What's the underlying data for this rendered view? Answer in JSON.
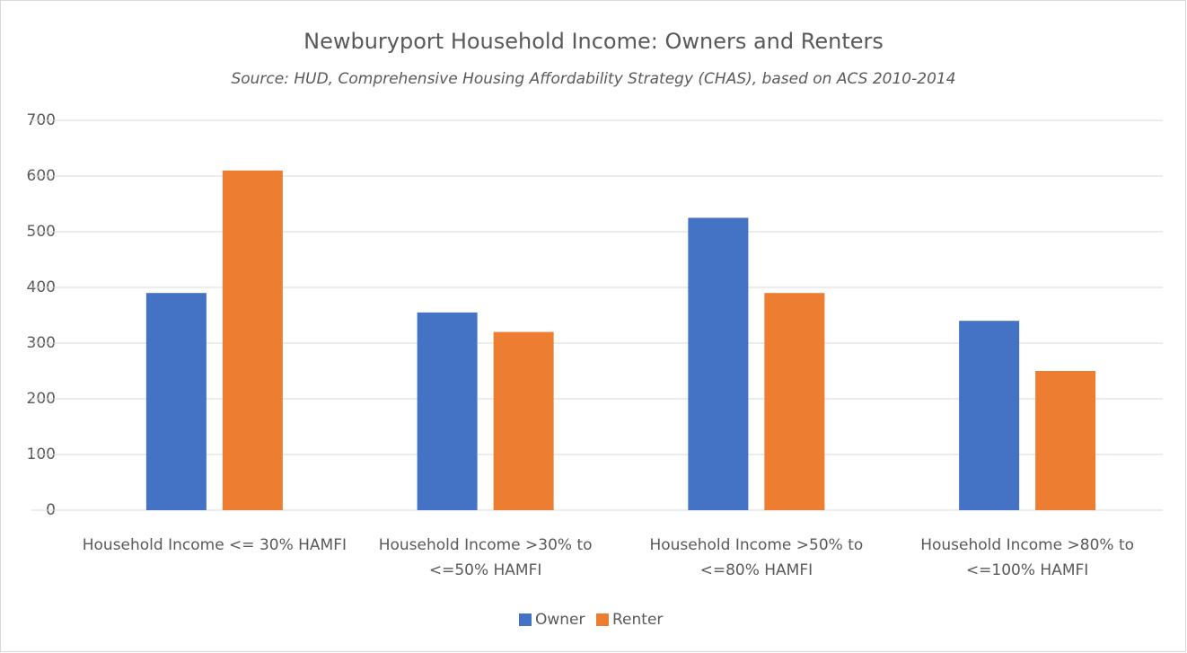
{
  "chart_data": {
    "type": "bar",
    "title": "Newburyport Household Income: Owners and Renters",
    "subtitle": "Source: HUD, Comprehensive Housing Affordability Strategy (CHAS), based on ACS 2010-2014",
    "categories": [
      "Household Income <= 30% HAMFI",
      "Household Income >30% to <=50% HAMFI",
      "Household Income >50% to <=80% HAMFI",
      "Household Income >80% to <=100% HAMFI"
    ],
    "series": [
      {
        "name": "Owner",
        "color": "#4472c4",
        "values": [
          390,
          355,
          525,
          340
        ]
      },
      {
        "name": "Renter",
        "color": "#ed7d31",
        "values": [
          610,
          320,
          390,
          250
        ]
      }
    ],
    "ylim": [
      0,
      700
    ],
    "yticks": [
      0,
      100,
      200,
      300,
      400,
      500,
      600,
      700
    ],
    "grid": true,
    "legend": "bottom"
  }
}
